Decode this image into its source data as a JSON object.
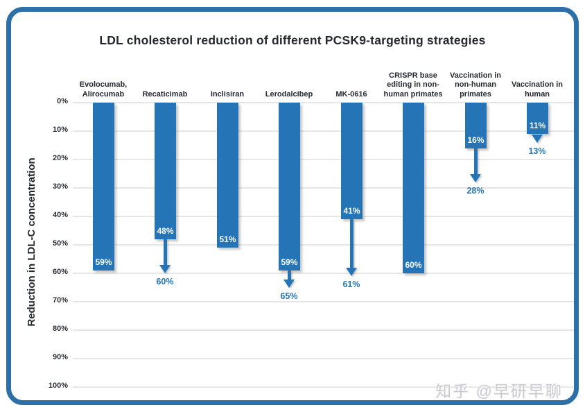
{
  "watermark": {
    "text": "知乎 @早研早聊"
  },
  "colors": {
    "bar": "#2574b6",
    "arrow_label": "#2574b6",
    "frame": "#2d70a8",
    "grid": "#e6e6e8",
    "title_text": "#25282e",
    "watermark": "#cbcbd2"
  },
  "chart_data": {
    "type": "bar",
    "title": "LDL cholesterol reduction of different PCSK9-targeting strategies",
    "ylabel": "Reduction in LDL-C concentration",
    "xlabel": "",
    "ylim": [
      0,
      100
    ],
    "y_axis_direction": "inverted (0% at top, bars extend downward)",
    "y_tick_labels": [
      "0%",
      "10%",
      "20%",
      "30%",
      "40%",
      "50%",
      "60%",
      "70%",
      "80%",
      "90%",
      "100%"
    ],
    "grid": true,
    "legend": false,
    "categories": [
      "Evolocumab, Alirocumab",
      "Recaticimab",
      "Inclisiran",
      "Lerodalcibep",
      "MK-0616",
      "CRISPR base editing in non-human primates",
      "Vaccination in non-human primates",
      "Vaccination in human"
    ],
    "category_label_lines": [
      [
        "Evolocumab,",
        "Alirocumab"
      ],
      [
        "Recaticimab"
      ],
      [
        "Inclisiran"
      ],
      [
        "Lerodalcibep"
      ],
      [
        "MK-0616"
      ],
      [
        "CRISPR base",
        "editing in non-",
        "human primates"
      ],
      [
        "Vaccination in",
        "non-human",
        "primates"
      ],
      [
        "Vaccination in",
        "human"
      ]
    ],
    "series": [
      {
        "name": "LDL-C reduction shown by bar (%)",
        "values": [
          59,
          48,
          51,
          59,
          41,
          60,
          16,
          11
        ]
      },
      {
        "name": "Extended LDL-C reduction shown by arrow (%)",
        "values": [
          null,
          60,
          null,
          65,
          61,
          null,
          28,
          13
        ]
      }
    ],
    "bar_value_labels": [
      "59%",
      "48%",
      "51%",
      "59%",
      "41%",
      "60%",
      "16%",
      "11%"
    ],
    "arrow_value_labels": [
      null,
      "60%",
      null,
      "65%",
      "61%",
      null,
      "28%",
      "13%"
    ]
  }
}
